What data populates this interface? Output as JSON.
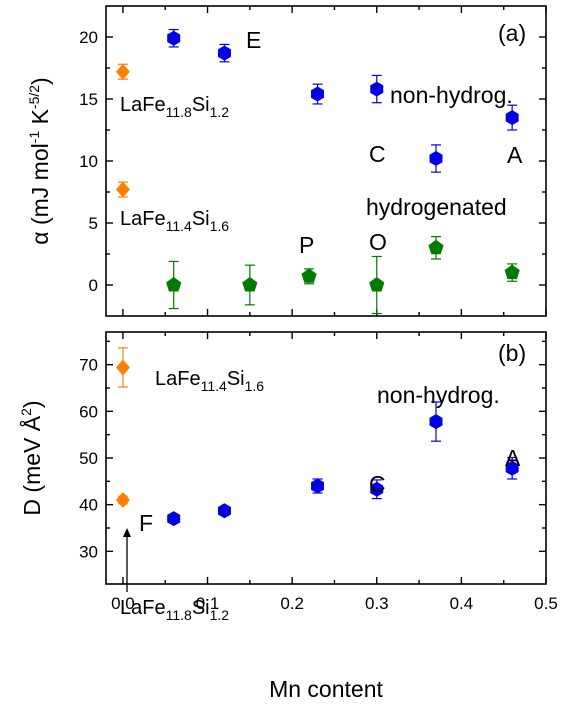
{
  "chart_data": [
    {
      "panel": "(a)",
      "type": "scatter",
      "ylabel": "α (mJ mol⁻¹ K⁻⁵ᐟ²)",
      "ylabel_parts": {
        "pre": "α (mJ mol",
        "sup1": "-1",
        "mid": " K",
        "sup2": "-5/2",
        "post": ")"
      },
      "ylim": [
        -2.5,
        22.5
      ],
      "yticks": [
        "0",
        "5",
        "10",
        "15",
        "20"
      ],
      "xlim": [
        -0.02,
        0.5
      ],
      "grid": false,
      "colors": {
        "non_hydrogenated": "#0000e6",
        "hydrogenated": "#007a00",
        "reference": "#ff8000"
      },
      "series": [
        {
          "marker": "hexagon",
          "color": "#0000e6",
          "x": [
            0.06,
            0.12,
            0.23,
            0.3,
            0.37,
            0.46
          ],
          "y": [
            19.9,
            18.7,
            15.4,
            15.8,
            10.2,
            13.5
          ],
          "err": [
            0.7,
            0.7,
            0.8,
            1.1,
            1.1,
            1.0
          ]
        },
        {
          "marker": "pentagon",
          "color": "#007a00",
          "x": [
            0.06,
            0.15,
            0.22,
            0.3,
            0.37,
            0.46
          ],
          "y": [
            0.0,
            0.0,
            0.7,
            0.0,
            3.0,
            1.0
          ],
          "err": [
            1.9,
            1.6,
            0.6,
            2.3,
            0.9,
            0.7
          ]
        },
        {
          "marker": "diamond",
          "color": "#ff8000",
          "x": [
            0.0,
            0.0
          ],
          "y": [
            17.2,
            7.7
          ],
          "err": [
            0.6,
            0.6
          ]
        }
      ],
      "annotations": {
        "E": "E",
        "C": "C",
        "A": "A",
        "P": "P",
        "O": "O",
        "non_hydrog": "non-hydrog.",
        "hydrogenated": "hydrogenated",
        "compound1": {
          "base": "LaFe",
          "sub1": "11.8",
          "mid": "Si",
          "sub2": "1.2"
        },
        "compound2": {
          "base": "LaFe",
          "sub1": "11.4",
          "mid": "Si",
          "sub2": "1.6"
        }
      }
    },
    {
      "panel": "(b)",
      "type": "scatter",
      "ylabel": "D (meV Å²)",
      "ylabel_parts": {
        "pre": "D (meV Å",
        "sup": "2",
        "post": ")"
      },
      "ylim": [
        23,
        77
      ],
      "yticks": [
        "30",
        "40",
        "50",
        "60",
        "70"
      ],
      "xlim": [
        -0.02,
        0.5
      ],
      "xticks": [
        "0.0",
        "0.1",
        "0.2",
        "0.3",
        "0.4",
        "0.5"
      ],
      "xlabel": "Mn content",
      "grid": false,
      "series": [
        {
          "marker": "hexagon",
          "color": "#0000e6",
          "x": [
            0.06,
            0.12,
            0.23,
            0.3,
            0.37,
            0.46
          ],
          "y": [
            37.0,
            38.7,
            44.0,
            43.3,
            57.8,
            47.8
          ],
          "err": [
            0.8,
            0.9,
            1.5,
            2.0,
            4.2,
            2.3
          ]
        },
        {
          "marker": "diamond",
          "color": "#ff8000",
          "x": [
            0.0,
            0.0
          ],
          "y": [
            41.0,
            69.4
          ],
          "err": [
            0.8,
            4.2
          ]
        }
      ],
      "annotations": {
        "F": "F",
        "C": "C",
        "A": "A",
        "non_hydrog": "non-hydrog.",
        "compound1": {
          "base": "LaFe",
          "sub1": "11.4",
          "mid": "Si",
          "sub2": "1.6"
        },
        "compound2": {
          "base": "LaFe",
          "sub1": "11.8",
          "mid": "Si",
          "sub2": "1.2"
        }
      }
    }
  ]
}
